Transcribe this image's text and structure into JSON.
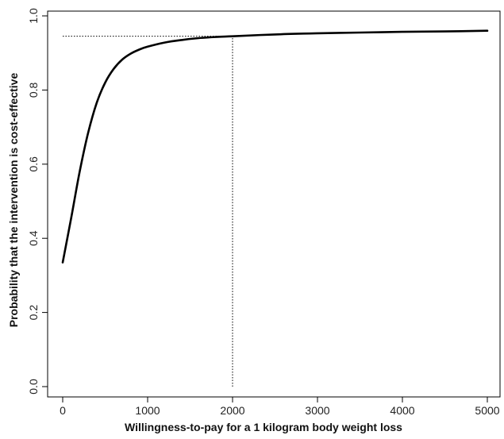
{
  "chart_data": {
    "type": "line",
    "title": "",
    "xlabel": "Willingness-to-pay for a 1 kilogram body weight loss",
    "ylabel": "Probability that the intervention is cost-effective",
    "xlim": [
      0,
      5000
    ],
    "ylim": [
      0,
      1.0
    ],
    "x_ticks": [
      0,
      1000,
      2000,
      3000,
      4000,
      5000
    ],
    "y_ticks": [
      0.0,
      0.2,
      0.4,
      0.6,
      0.8,
      1.0
    ],
    "x_tick_labels": [
      "0",
      "1000",
      "2000",
      "3000",
      "4000",
      "5000"
    ],
    "y_tick_labels": [
      "0.0",
      "0.2",
      "0.4",
      "0.6",
      "0.8",
      "1.0"
    ],
    "grid": false,
    "series": [
      {
        "x": [
          0,
          100,
          200,
          300,
          400,
          500,
          600,
          700,
          800,
          900,
          1000,
          1200,
          1400,
          1600,
          1800,
          2000,
          2500,
          3000,
          3500,
          4000,
          4500,
          5000
        ],
        "y": [
          0.335,
          0.455,
          0.58,
          0.685,
          0.765,
          0.82,
          0.857,
          0.882,
          0.898,
          0.909,
          0.917,
          0.928,
          0.935,
          0.94,
          0.943,
          0.945,
          0.95,
          0.953,
          0.955,
          0.957,
          0.958,
          0.96
        ],
        "color": "#000000"
      }
    ],
    "reference_lines": [
      {
        "orientation": "vertical",
        "value": 2000,
        "from": 0,
        "to": 0.945
      },
      {
        "orientation": "horizontal",
        "value": 0.945,
        "from": 0,
        "to": 2000
      }
    ]
  }
}
